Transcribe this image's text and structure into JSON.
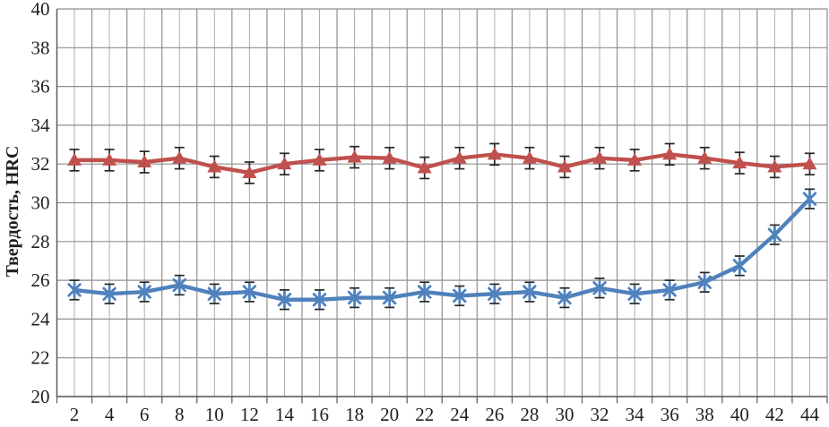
{
  "page": {
    "background": "#ffffff"
  },
  "chart_data": {
    "type": "line",
    "title": "",
    "xlabel": "",
    "ylabel": "Твердость, HRC",
    "x": [
      2,
      4,
      6,
      8,
      10,
      12,
      14,
      16,
      18,
      20,
      22,
      24,
      26,
      28,
      30,
      32,
      34,
      36,
      38,
      40,
      42,
      44
    ],
    "xtick_labels": [
      "2",
      "4",
      "6",
      "8",
      "10",
      "12",
      "14",
      "16",
      "18",
      "20",
      "22",
      "24",
      "26",
      "28",
      "30",
      "32",
      "34",
      "36",
      "38",
      "40",
      "42",
      "44"
    ],
    "ylim": [
      20,
      40
    ],
    "yticks": [
      20,
      22,
      24,
      26,
      28,
      30,
      32,
      34,
      36,
      38,
      40
    ],
    "grid": {
      "horizontal": true,
      "vertical": true,
      "vertical_minor_every_unit": 1
    },
    "legend": "none",
    "series": [
      {
        "name": "red-triangle-series",
        "marker": "triangle",
        "color": "#C0504D",
        "error_bar": 0.55,
        "values": [
          32.2,
          32.2,
          32.1,
          32.3,
          31.85,
          31.55,
          32.0,
          32.2,
          32.35,
          32.3,
          31.8,
          32.3,
          32.5,
          32.3,
          31.85,
          32.3,
          32.2,
          32.5,
          32.3,
          32.05,
          31.85,
          32.0
        ]
      },
      {
        "name": "blue-asterisk-series",
        "marker": "asterisk",
        "color": "#4F81BD",
        "error_bar": 0.5,
        "values": [
          25.5,
          25.3,
          25.4,
          25.75,
          25.3,
          25.4,
          25.0,
          25.0,
          25.1,
          25.1,
          25.4,
          25.2,
          25.3,
          25.4,
          25.1,
          25.6,
          25.3,
          25.5,
          25.9,
          26.75,
          28.35,
          30.2
        ]
      }
    ],
    "style": {
      "grid_major_color": "#8f8f8f",
      "grid_minor_color": "#adadad",
      "axis_color": "#5a5a5a",
      "error_bar_color": "#262626",
      "tick_label_color": "#1f1f1f"
    }
  }
}
